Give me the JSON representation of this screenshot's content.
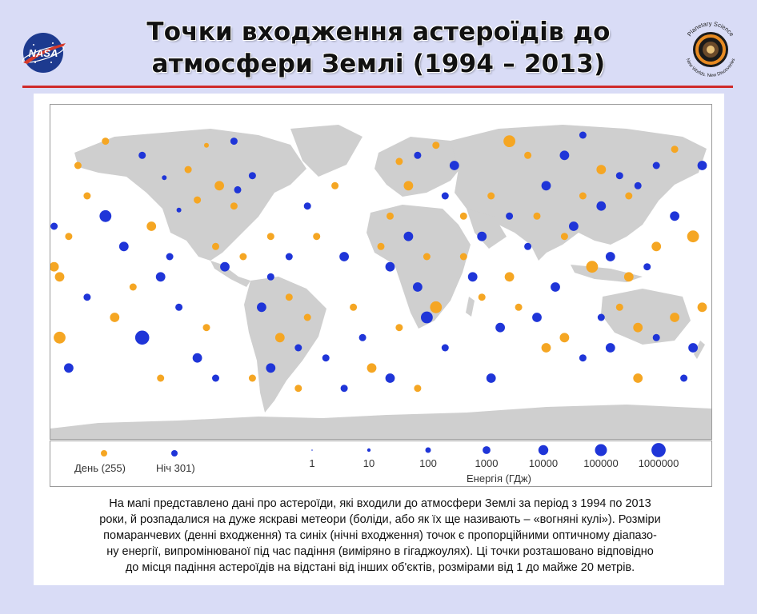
{
  "header": {
    "title_line1": "Точки входження астероїдів до",
    "title_line2": "атмосфери Землі (1994 – 2013)",
    "nasa_logo_text": "NASA",
    "ps_logo_text_top": "Planetary Science",
    "ps_logo_text_bottom": "New Worlds. New Discoveries"
  },
  "legend": {
    "day_label": "День (255)",
    "night_label": "Ніч 301)",
    "energy_title": "Енергія (ГДж)",
    "scale": [
      "1",
      "10",
      "100",
      "1000",
      "10000",
      "100000",
      "1000000"
    ]
  },
  "caption": {
    "lines": [
      "На мапі представлено дані про астероїди, які входили до атмосфери Землі за період з 1994 по 2013",
      "роки, й розпадалися на дуже яскраві метеори (боліди, або як їх ще називають – «вогняні кулі»). Розміри",
      "помаранчевих (денні входження) та синіх (нічні входження) точок є пропорційними оптичному діапазо-",
      "ну енергії, випромінюваної під час падіння (виміряно в гігаджоулях). Ці точки розташовано відповідно",
      "до місця падіння астероїдів на відстані від інших об'єктів, розмірами від 1 до майже 20 метрів."
    ]
  },
  "colors": {
    "day": "#f5a623",
    "night": "#1f35d8",
    "land": "#cfcfcf",
    "rule": "#cf2a2a",
    "background": "#d9dcf6"
  },
  "map_data": {
    "projection": "equirectangular",
    "day_count": 255,
    "night_count": 301,
    "events": [
      {
        "t": "d",
        "lon": -150,
        "lat": 62,
        "e": 100
      },
      {
        "t": "n",
        "lon": -130,
        "lat": 55,
        "e": 100
      },
      {
        "t": "d",
        "lon": -95,
        "lat": 60,
        "e": 10
      },
      {
        "t": "n",
        "lon": -80,
        "lat": 62,
        "e": 100
      },
      {
        "t": "d",
        "lon": -105,
        "lat": 48,
        "e": 100
      },
      {
        "t": "n",
        "lon": -118,
        "lat": 44,
        "e": 10
      },
      {
        "t": "d",
        "lon": -88,
        "lat": 40,
        "e": 1000
      },
      {
        "t": "n",
        "lon": -78,
        "lat": 38,
        "e": 100
      },
      {
        "t": "d",
        "lon": -100,
        "lat": 33,
        "e": 100
      },
      {
        "t": "n",
        "lon": -110,
        "lat": 28,
        "e": 10
      },
      {
        "t": "d",
        "lon": -80,
        "lat": 30,
        "e": 100
      },
      {
        "t": "n",
        "lon": -70,
        "lat": 45,
        "e": 100
      },
      {
        "t": "d",
        "lon": -160,
        "lat": 35,
        "e": 100
      },
      {
        "t": "n",
        "lon": -150,
        "lat": 25,
        "e": 10000
      },
      {
        "t": "d",
        "lon": -170,
        "lat": 15,
        "e": 100
      },
      {
        "t": "n",
        "lon": -140,
        "lat": 10,
        "e": 1000
      },
      {
        "t": "d",
        "lon": -125,
        "lat": 20,
        "e": 1000
      },
      {
        "t": "n",
        "lon": -115,
        "lat": 5,
        "e": 100
      },
      {
        "t": "d",
        "lon": -175,
        "lat": -5,
        "e": 1000
      },
      {
        "t": "n",
        "lon": -160,
        "lat": -15,
        "e": 100
      },
      {
        "t": "d",
        "lon": -145,
        "lat": -25,
        "e": 1000
      },
      {
        "t": "n",
        "lon": -130,
        "lat": -35,
        "e": 100000
      },
      {
        "t": "d",
        "lon": -175,
        "lat": -35,
        "e": 10000
      },
      {
        "t": "n",
        "lon": -110,
        "lat": -20,
        "e": 100
      },
      {
        "t": "d",
        "lon": -95,
        "lat": -30,
        "e": 100
      },
      {
        "t": "n",
        "lon": -100,
        "lat": -45,
        "e": 1000
      },
      {
        "t": "d",
        "lon": -90,
        "lat": 10,
        "e": 100
      },
      {
        "t": "n",
        "lon": -85,
        "lat": 0,
        "e": 1000
      },
      {
        "t": "d",
        "lon": -75,
        "lat": 5,
        "e": 100
      },
      {
        "t": "n",
        "lon": -60,
        "lat": -5,
        "e": 100
      },
      {
        "t": "d",
        "lon": -50,
        "lat": -15,
        "e": 100
      },
      {
        "t": "n",
        "lon": -65,
        "lat": -20,
        "e": 1000
      },
      {
        "t": "d",
        "lon": -55,
        "lat": -35,
        "e": 1000
      },
      {
        "t": "n",
        "lon": -60,
        "lat": -50,
        "e": 1000
      },
      {
        "t": "d",
        "lon": -45,
        "lat": -60,
        "e": 100
      },
      {
        "t": "n",
        "lon": -30,
        "lat": -45,
        "e": 100
      },
      {
        "t": "d",
        "lon": -35,
        "lat": 15,
        "e": 100
      },
      {
        "t": "n",
        "lon": -40,
        "lat": 30,
        "e": 100
      },
      {
        "t": "d",
        "lon": -25,
        "lat": 40,
        "e": 100
      },
      {
        "t": "n",
        "lon": -20,
        "lat": 5,
        "e": 1000
      },
      {
        "t": "d",
        "lon": -15,
        "lat": -20,
        "e": 100
      },
      {
        "t": "n",
        "lon": -10,
        "lat": -35,
        "e": 100
      },
      {
        "t": "d",
        "lon": -5,
        "lat": -50,
        "e": 1000
      },
      {
        "t": "n",
        "lon": 5,
        "lat": -55,
        "e": 1000
      },
      {
        "t": "d",
        "lon": 10,
        "lat": 52,
        "e": 100
      },
      {
        "t": "n",
        "lon": 20,
        "lat": 55,
        "e": 100
      },
      {
        "t": "d",
        "lon": 30,
        "lat": 60,
        "e": 100
      },
      {
        "t": "n",
        "lon": 40,
        "lat": 50,
        "e": 1000
      },
      {
        "t": "d",
        "lon": 15,
        "lat": 40,
        "e": 1000
      },
      {
        "t": "n",
        "lon": 35,
        "lat": 35,
        "e": 100
      },
      {
        "t": "d",
        "lon": 5,
        "lat": 25,
        "e": 100
      },
      {
        "t": "n",
        "lon": 15,
        "lat": 15,
        "e": 1000
      },
      {
        "t": "d",
        "lon": 25,
        "lat": 5,
        "e": 100
      },
      {
        "t": "n",
        "lon": 20,
        "lat": -10,
        "e": 1000
      },
      {
        "t": "d",
        "lon": 30,
        "lat": -20,
        "e": 10000
      },
      {
        "t": "n",
        "lon": 25,
        "lat": -25,
        "e": 10000
      },
      {
        "t": "d",
        "lon": 10,
        "lat": -30,
        "e": 100
      },
      {
        "t": "n",
        "lon": 35,
        "lat": -40,
        "e": 100
      },
      {
        "t": "d",
        "lon": 45,
        "lat": 25,
        "e": 100
      },
      {
        "t": "n",
        "lon": 55,
        "lat": 15,
        "e": 1000
      },
      {
        "t": "d",
        "lon": 60,
        "lat": 35,
        "e": 100
      },
      {
        "t": "n",
        "lon": 70,
        "lat": 25,
        "e": 100
      },
      {
        "t": "d",
        "lon": 55,
        "lat": -15,
        "e": 100
      },
      {
        "t": "n",
        "lon": 65,
        "lat": -30,
        "e": 1000
      },
      {
        "t": "d",
        "lon": 70,
        "lat": -5,
        "e": 1000
      },
      {
        "t": "n",
        "lon": 80,
        "lat": 10,
        "e": 100
      },
      {
        "t": "d",
        "lon": 85,
        "lat": 25,
        "e": 100
      },
      {
        "t": "n",
        "lon": 90,
        "lat": 40,
        "e": 1000
      },
      {
        "t": "d",
        "lon": 80,
        "lat": 55,
        "e": 100
      },
      {
        "t": "n",
        "lon": 100,
        "lat": 55,
        "e": 1000
      },
      {
        "t": "d",
        "lon": 70,
        "lat": 62,
        "e": 10000
      },
      {
        "t": "n",
        "lon": 110,
        "lat": 65,
        "e": 100
      },
      {
        "t": "d",
        "lon": 120,
        "lat": 48,
        "e": 1000
      },
      {
        "t": "n",
        "lon": 130,
        "lat": 45,
        "e": 100
      },
      {
        "t": "d",
        "lon": 110,
        "lat": 35,
        "e": 100
      },
      {
        "t": "n",
        "lon": 120,
        "lat": 30,
        "e": 1000
      },
      {
        "t": "d",
        "lon": 135,
        "lat": 35,
        "e": 100
      },
      {
        "t": "n",
        "lon": 140,
        "lat": 40,
        "e": 100
      },
      {
        "t": "d",
        "lon": 100,
        "lat": 15,
        "e": 100
      },
      {
        "t": "n",
        "lon": 105,
        "lat": 20,
        "e": 1000
      },
      {
        "t": "d",
        "lon": 115,
        "lat": 0,
        "e": 10000
      },
      {
        "t": "n",
        "lon": 125,
        "lat": 5,
        "e": 1000
      },
      {
        "t": "d",
        "lon": 135,
        "lat": -5,
        "e": 1000
      },
      {
        "t": "n",
        "lon": 145,
        "lat": 0,
        "e": 100
      },
      {
        "t": "d",
        "lon": 150,
        "lat": 10,
        "e": 1000
      },
      {
        "t": "n",
        "lon": 160,
        "lat": 25,
        "e": 1000
      },
      {
        "t": "d",
        "lon": 170,
        "lat": 15,
        "e": 10000
      },
      {
        "t": "n",
        "lon": 175,
        "lat": 50,
        "e": 1000
      },
      {
        "t": "d",
        "lon": 160,
        "lat": 58,
        "e": 100
      },
      {
        "t": "n",
        "lon": 150,
        "lat": 50,
        "e": 100
      },
      {
        "t": "d",
        "lon": 130,
        "lat": -20,
        "e": 100
      },
      {
        "t": "n",
        "lon": 120,
        "lat": -25,
        "e": 100
      },
      {
        "t": "d",
        "lon": 140,
        "lat": -30,
        "e": 1000
      },
      {
        "t": "n",
        "lon": 150,
        "lat": -35,
        "e": 100
      },
      {
        "t": "d",
        "lon": 160,
        "lat": -25,
        "e": 1000
      },
      {
        "t": "n",
        "lon": 170,
        "lat": -40,
        "e": 1000
      },
      {
        "t": "d",
        "lon": 175,
        "lat": -20,
        "e": 1000
      },
      {
        "t": "n",
        "lon": 165,
        "lat": -55,
        "e": 100
      },
      {
        "t": "d",
        "lon": 140,
        "lat": -55,
        "e": 1000
      },
      {
        "t": "n",
        "lon": 110,
        "lat": -45,
        "e": 100
      },
      {
        "t": "d",
        "lon": 100,
        "lat": -35,
        "e": 1000
      },
      {
        "t": "n",
        "lon": 95,
        "lat": -10,
        "e": 1000
      },
      {
        "t": "d",
        "lon": -120,
        "lat": -55,
        "e": 100
      },
      {
        "t": "n",
        "lon": -90,
        "lat": -55,
        "e": 100
      },
      {
        "t": "d",
        "lon": -70,
        "lat": -55,
        "e": 100
      },
      {
        "t": "n",
        "lon": -20,
        "lat": -60,
        "e": 100
      },
      {
        "t": "d",
        "lon": 20,
        "lat": -60,
        "e": 100
      },
      {
        "t": "n",
        "lon": 60,
        "lat": -55,
        "e": 1000
      },
      {
        "t": "d",
        "lon": -165,
        "lat": 50,
        "e": 100
      },
      {
        "t": "n",
        "lon": -178,
        "lat": 20,
        "e": 100
      },
      {
        "t": "d",
        "lon": -178,
        "lat": 0,
        "e": 1000
      },
      {
        "t": "n",
        "lon": -170,
        "lat": -50,
        "e": 1000
      },
      {
        "t": "d",
        "lon": -135,
        "lat": -10,
        "e": 100
      },
      {
        "t": "n",
        "lon": -120,
        "lat": -5,
        "e": 1000
      },
      {
        "t": "d",
        "lon": -60,
        "lat": 15,
        "e": 100
      },
      {
        "t": "n",
        "lon": -50,
        "lat": 5,
        "e": 100
      },
      {
        "t": "d",
        "lon": -40,
        "lat": -25,
        "e": 100
      },
      {
        "t": "n",
        "lon": -45,
        "lat": -40,
        "e": 100
      },
      {
        "t": "d",
        "lon": 0,
        "lat": 10,
        "e": 100
      },
      {
        "t": "n",
        "lon": 5,
        "lat": 0,
        "e": 1000
      },
      {
        "t": "d",
        "lon": 45,
        "lat": 5,
        "e": 100
      },
      {
        "t": "n",
        "lon": 50,
        "lat": -5,
        "e": 1000
      },
      {
        "t": "d",
        "lon": 75,
        "lat": -20,
        "e": 100
      },
      {
        "t": "n",
        "lon": 85,
        "lat": -25,
        "e": 1000
      },
      {
        "t": "d",
        "lon": 90,
        "lat": -40,
        "e": 1000
      },
      {
        "t": "n",
        "lon": 125,
        "lat": -40,
        "e": 1000
      }
    ]
  }
}
